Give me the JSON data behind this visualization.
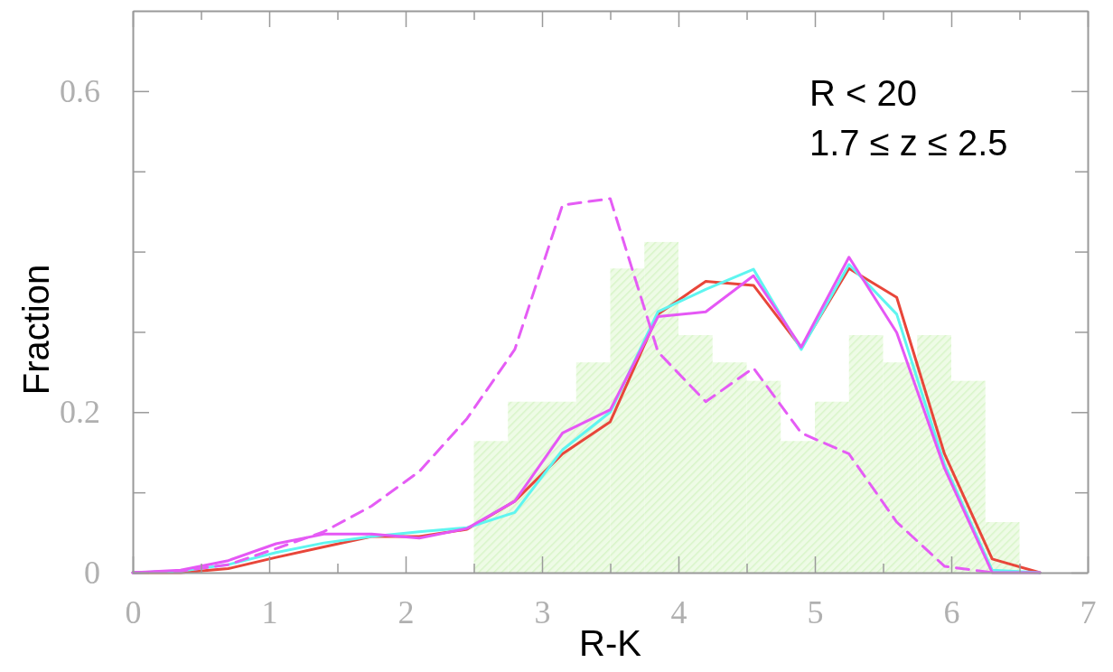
{
  "chart_data": {
    "type": "histogram",
    "xlabel": "R-K",
    "ylabel": "Fraction",
    "annotations": [
      "R < 20",
      "1.7 ≤ z ≤ 2.5"
    ],
    "bins": [
      2.5,
      2.75,
      3.0,
      3.25,
      3.5,
      3.75,
      4.0,
      4.25,
      4.5,
      4.75,
      5.0,
      5.25,
      5.5,
      5.75,
      6.0,
      6.25,
      6.5
    ],
    "values": [
      0.164,
      0.213,
      0.213,
      0.262,
      0.379,
      0.412,
      0.296,
      0.262,
      0.239,
      0.164,
      0.213,
      0.296,
      0.262,
      0.296,
      0.239,
      0.063
    ],
    "color": "#d8f5c8",
    "x": [
      0,
      0.35,
      0.7,
      1.05,
      1.4,
      1.75,
      2.1,
      2.45,
      2.8,
      3.15,
      3.5,
      3.85,
      4.2,
      4.55,
      4.9,
      5.25,
      5.6,
      5.95,
      6.3,
      6.65
    ],
    "series": [
      {
        "type": "line",
        "color": "#e8463a",
        "values": [
          0,
          0,
          0.005,
          0.019,
          0.032,
          0.045,
          0.045,
          0.054,
          0.089,
          0.148,
          0.188,
          0.322,
          0.363,
          0.358,
          0.28,
          0.379,
          0.343,
          0.148,
          0.017,
          0
        ]
      },
      {
        "type": "line",
        "color": "#5ff5f0",
        "values": [
          0,
          0.002,
          0.01,
          0.025,
          0.037,
          0.045,
          0.051,
          0.056,
          0.075,
          0.153,
          0.2,
          0.325,
          0.353,
          0.378,
          0.278,
          0.384,
          0.322,
          0.135,
          0.003,
          0
        ]
      },
      {
        "type": "line",
        "color": "#e557f5",
        "values": [
          0,
          0.003,
          0.015,
          0.036,
          0.048,
          0.048,
          0.043,
          0.055,
          0.089,
          0.174,
          0.203,
          0.319,
          0.325,
          0.37,
          0.281,
          0.393,
          0.299,
          0.13,
          0,
          0
        ]
      },
      {
        "type": "line",
        "color": "#e55cf5",
        "line_style": "dashed",
        "values": [
          0,
          0.002,
          0.01,
          0.03,
          0.051,
          0.083,
          0.126,
          0.192,
          0.278,
          0.458,
          0.466,
          0.275,
          0.213,
          0.255,
          0.174,
          0.148,
          0.063,
          0.008,
          0,
          null
        ]
      }
    ],
    "xlim": [
      0,
      7
    ],
    "xticks": [
      0,
      {
        "value": 0.5,
        "label": null
      },
      1,
      {
        "value": 1.5,
        "label": null
      },
      2,
      {
        "value": 2.5,
        "label": null
      },
      3,
      {
        "value": 3.5,
        "label": null
      },
      4,
      {
        "value": 4.5,
        "label": null
      },
      5,
      {
        "value": 5.5,
        "label": null
      },
      6,
      {
        "value": 6.5,
        "label": null
      },
      7
    ],
    "ylim": [
      0,
      0.7
    ],
    "yticks": [
      0,
      {
        "value": 0.1,
        "label": null
      },
      0.2,
      {
        "value": 0.3,
        "label": null
      },
      {
        "value": 0.4,
        "label": null
      },
      {
        "value": 0.5,
        "label": null
      },
      0.6
    ],
    "grid": false
  }
}
